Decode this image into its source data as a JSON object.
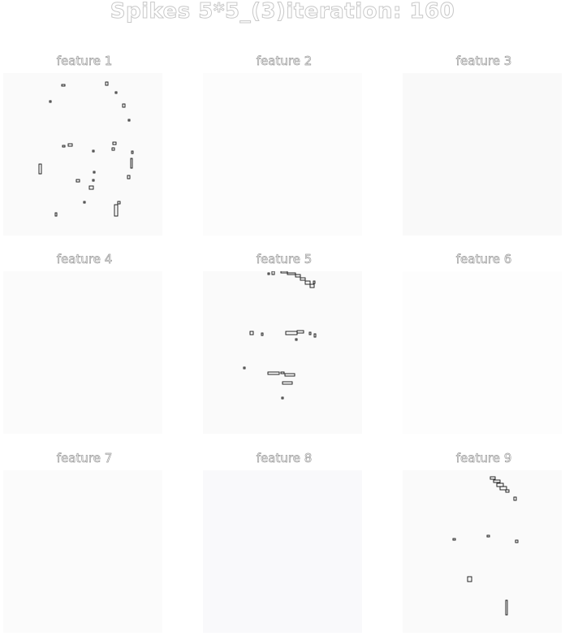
{
  "title": "Spikes 5*5_(3)iteration: 160",
  "chart_data": {
    "type": "image-grid",
    "title": "Spikes 5*5_(3)iteration: 160",
    "grid": [
      3,
      3
    ],
    "panels": [
      {
        "label": "feature 1"
      },
      {
        "label": "feature 2"
      },
      {
        "label": "feature 3"
      },
      {
        "label": "feature 4"
      },
      {
        "label": "feature 5"
      },
      {
        "label": "feature 6"
      },
      {
        "label": "feature 7"
      },
      {
        "label": "feature 8"
      },
      {
        "label": "feature 9"
      }
    ]
  }
}
